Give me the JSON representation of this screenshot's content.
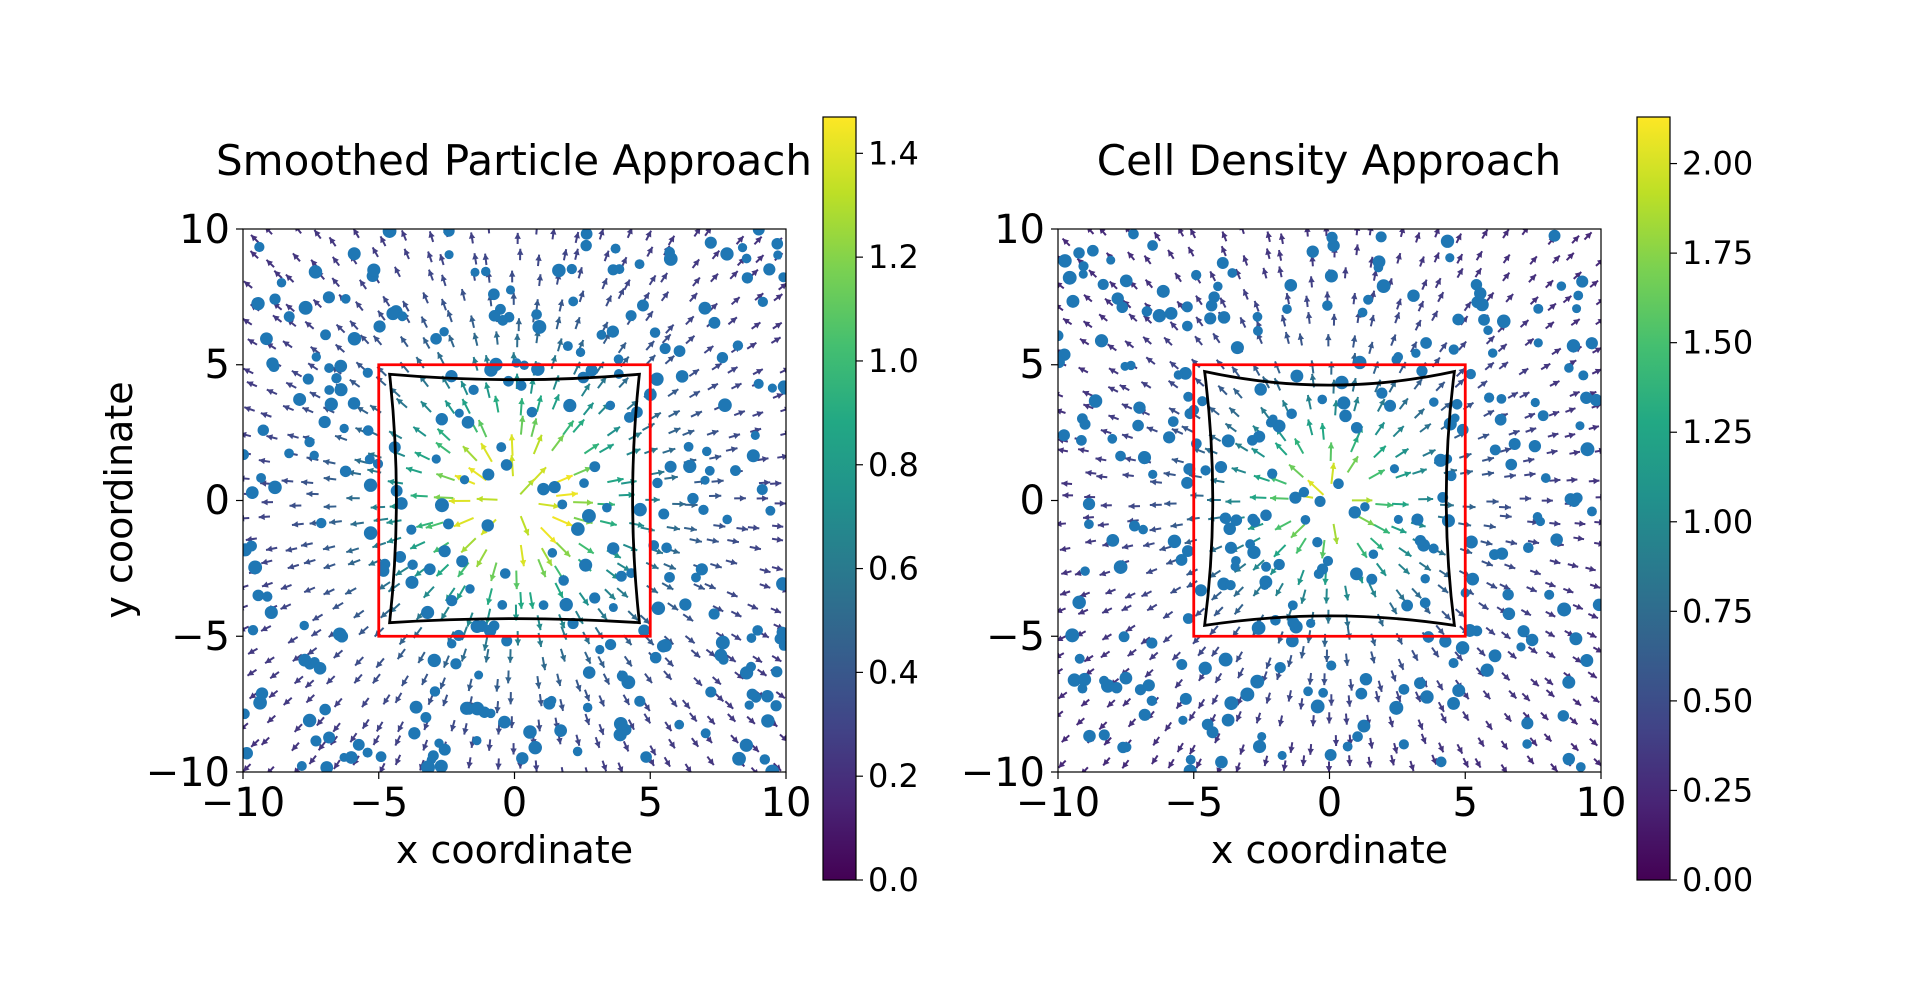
{
  "figure": {
    "background": "#ffffff"
  },
  "chart_data": [
    {
      "type": "scatter",
      "subtype": "particle-scatter-with-quiver-field",
      "title": "Smoothed Particle Approach",
      "xlabel": "x coordinate",
      "ylabel": "y coordinate",
      "xlim": [
        -10,
        10
      ],
      "ylim": [
        -10,
        10
      ],
      "xticks": [
        -10,
        -5,
        0,
        5,
        10
      ],
      "yticks": [
        -10,
        -5,
        0,
        5,
        10
      ],
      "xtick_labels": [
        "−10",
        "−5",
        "0",
        "5",
        "10"
      ],
      "ytick_labels": [
        "−10",
        "−5",
        "0",
        "5",
        "10"
      ],
      "particle_color": "#1f77b4",
      "particle_count": 300,
      "particle_seed": 7,
      "field": {
        "description": "radial displacement arrows pointing outward from origin, colored by magnitude",
        "grid_spacing": 0.8,
        "peak_radius": 1.5,
        "peak_magnitude": 1.45,
        "outer_magnitude": 0.18
      },
      "reference_square": {
        "corners": [
          [
            -5,
            -5
          ],
          [
            5,
            -5
          ],
          [
            5,
            5
          ],
          [
            -5,
            5
          ]
        ],
        "color": "#ff0000"
      },
      "deformed_boundary": {
        "color": "#000000",
        "corners": [
          [
            -4.6,
            -4.5
          ],
          [
            4.6,
            -4.5
          ],
          [
            4.6,
            4.65
          ],
          [
            -4.6,
            4.65
          ]
        ],
        "edge_bulge": [
          0.15,
          0.25,
          0.2,
          0.25
        ]
      },
      "colorbar": {
        "cmap": "viridis",
        "vmin": 0.0,
        "vmax": 1.47,
        "ticks": [
          0.0,
          0.2,
          0.4,
          0.6,
          0.8,
          1.0,
          1.2,
          1.4
        ],
        "tick_labels": [
          "0.0",
          "0.2",
          "0.4",
          "0.6",
          "0.8",
          "1.0",
          "1.2",
          "1.4"
        ]
      }
    },
    {
      "type": "scatter",
      "subtype": "particle-scatter-with-quiver-field",
      "title": "Cell Density Approach",
      "xlabel": "x coordinate",
      "ylabel": "",
      "xlim": [
        -10,
        10
      ],
      "ylim": [
        -10,
        10
      ],
      "xticks": [
        -10,
        -5,
        0,
        5,
        10
      ],
      "yticks": [
        -10,
        -5,
        0,
        5,
        10
      ],
      "xtick_labels": [
        "−10",
        "−5",
        "0",
        "5",
        "10"
      ],
      "ytick_labels": [
        "−10",
        "−5",
        "0",
        "5",
        "10"
      ],
      "particle_color": "#1f77b4",
      "particle_count": 300,
      "particle_seed": 19,
      "field": {
        "description": "radial displacement arrows pointing outward from origin, colored by magnitude",
        "grid_spacing": 0.8,
        "peak_radius": 0.4,
        "peak_magnitude": 2.1,
        "outer_magnitude": 0.22
      },
      "reference_square": {
        "corners": [
          [
            -5,
            -5
          ],
          [
            5,
            -5
          ],
          [
            5,
            5
          ],
          [
            -5,
            5
          ]
        ],
        "color": "#ff0000"
      },
      "deformed_boundary": {
        "color": "#000000",
        "corners": [
          [
            -4.6,
            -4.6
          ],
          [
            4.6,
            -4.6
          ],
          [
            4.6,
            4.75
          ],
          [
            -4.6,
            4.75
          ]
        ],
        "edge_bulge": [
          0.35,
          0.3,
          0.5,
          0.3
        ]
      },
      "colorbar": {
        "cmap": "viridis",
        "vmin": 0.0,
        "vmax": 2.13,
        "ticks": [
          0.0,
          0.25,
          0.5,
          0.75,
          1.0,
          1.25,
          1.5,
          1.75,
          2.0
        ],
        "tick_labels": [
          "0.00",
          "0.25",
          "0.50",
          "0.75",
          "1.00",
          "1.25",
          "1.50",
          "1.75",
          "2.00"
        ]
      }
    }
  ]
}
